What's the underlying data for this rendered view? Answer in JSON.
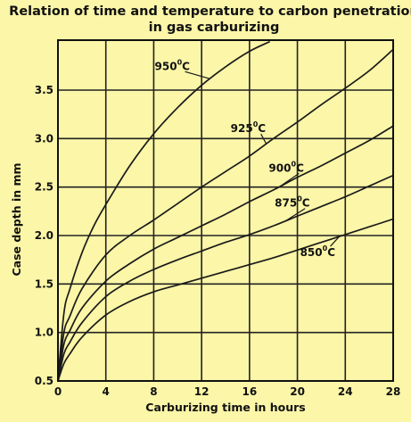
{
  "chart_data": {
    "type": "line",
    "title": [
      "Relation of time and temperature to carbon penetration",
      "in gas carburizing"
    ],
    "xlabel": "Carburizing time in hours",
    "ylabel": "Case depth in mm",
    "xlim": [
      0,
      28
    ],
    "ylim": [
      0.5,
      4.0
    ],
    "xticks": [
      0,
      4,
      8,
      12,
      16,
      20,
      24,
      28
    ],
    "yticks": [
      0.5,
      1.0,
      1.5,
      2.0,
      2.5,
      3.0,
      3.5
    ],
    "ytick_labels": [
      "0.5",
      "1.0",
      "1.5",
      "2.0",
      "2.5",
      "3.0",
      "3.5"
    ],
    "grid": true,
    "series": [
      {
        "name": "950",
        "label_suffix": "0C",
        "x": [
          0,
          0.5,
          1,
          2,
          3,
          4,
          6,
          8,
          10,
          12,
          14,
          16,
          17.7
        ],
        "y": [
          0.5,
          1.2,
          1.45,
          1.82,
          2.1,
          2.32,
          2.72,
          3.05,
          3.32,
          3.55,
          3.74,
          3.9,
          4.0
        ]
      },
      {
        "name": "925",
        "label_suffix": "0C",
        "x": [
          0,
          0.5,
          1,
          2,
          4,
          6,
          8,
          10,
          12,
          14,
          16,
          18,
          20,
          22,
          24,
          26,
          28
        ],
        "y": [
          0.5,
          1.0,
          1.17,
          1.45,
          1.8,
          2.0,
          2.16,
          2.33,
          2.5,
          2.66,
          2.82,
          3.0,
          3.17,
          3.35,
          3.52,
          3.7,
          3.92
        ]
      },
      {
        "name": "900",
        "label_suffix": "0C",
        "x": [
          0,
          0.5,
          1,
          2,
          4,
          6,
          8,
          10,
          12,
          14,
          16,
          18,
          20,
          22,
          24,
          26,
          28
        ],
        "y": [
          0.5,
          0.88,
          1.02,
          1.25,
          1.53,
          1.71,
          1.86,
          1.98,
          2.1,
          2.22,
          2.35,
          2.47,
          2.6,
          2.72,
          2.85,
          2.98,
          3.13
        ]
      },
      {
        "name": "875",
        "label_suffix": "0C",
        "x": [
          0,
          0.5,
          1,
          2,
          4,
          6,
          8,
          10,
          12,
          14,
          16,
          18,
          20,
          22,
          24,
          26,
          28
        ],
        "y": [
          0.5,
          0.78,
          0.9,
          1.1,
          1.37,
          1.53,
          1.65,
          1.75,
          1.84,
          1.93,
          2.01,
          2.1,
          2.2,
          2.3,
          2.4,
          2.51,
          2.62
        ]
      },
      {
        "name": "850",
        "label_suffix": "0C",
        "x": [
          0,
          0.5,
          1,
          2,
          4,
          6,
          8,
          10,
          12,
          14,
          16,
          18,
          20,
          22,
          24,
          26,
          28
        ],
        "y": [
          0.5,
          0.68,
          0.78,
          0.95,
          1.18,
          1.32,
          1.42,
          1.49,
          1.56,
          1.63,
          1.7,
          1.77,
          1.85,
          1.93,
          2.01,
          2.09,
          2.17
        ]
      }
    ]
  }
}
